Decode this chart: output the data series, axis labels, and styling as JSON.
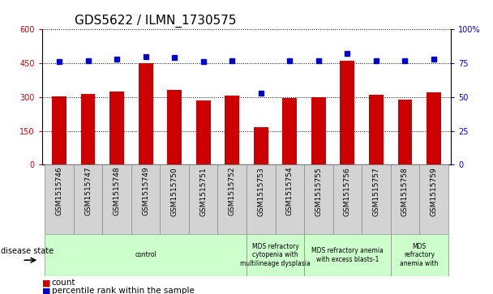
{
  "title": "GDS5622 / ILMN_1730575",
  "samples": [
    "GSM1515746",
    "GSM1515747",
    "GSM1515748",
    "GSM1515749",
    "GSM1515750",
    "GSM1515751",
    "GSM1515752",
    "GSM1515753",
    "GSM1515754",
    "GSM1515755",
    "GSM1515756",
    "GSM1515757",
    "GSM1515758",
    "GSM1515759"
  ],
  "counts": [
    302,
    315,
    325,
    450,
    330,
    285,
    305,
    165,
    295,
    298,
    460,
    310,
    290,
    322
  ],
  "percentiles": [
    76,
    77,
    78,
    80,
    79,
    76,
    77,
    53,
    77,
    77,
    82,
    77,
    77,
    78
  ],
  "left_ylim": [
    0,
    600
  ],
  "right_ylim": [
    0,
    100
  ],
  "left_yticks": [
    0,
    150,
    300,
    450,
    600
  ],
  "right_yticks": [
    0,
    25,
    50,
    75,
    100
  ],
  "right_yticklabels": [
    "0",
    "25",
    "50",
    "75",
    "100%"
  ],
  "bar_color": "#cc0000",
  "dot_color": "#0000cc",
  "disease_groups": [
    {
      "label": "control",
      "start": 0,
      "end": 6
    },
    {
      "label": "MDS refractory\ncytopenia with\nmultilineage dysplasia",
      "start": 7,
      "end": 8
    },
    {
      "label": "MDS refractory anemia\nwith excess blasts-1",
      "start": 9,
      "end": 11
    },
    {
      "label": "MDS\nrefractory\nanemia with",
      "start": 12,
      "end": 13
    }
  ],
  "disease_state_label": "disease state",
  "legend_count_label": "count",
  "legend_pct_label": "percentile rank within the sample",
  "tick_label_color_left": "#cc0000",
  "tick_label_color_right": "#0000cc",
  "title_fontsize": 11,
  "tick_fontsize": 7,
  "sample_label_fontsize": 6.5,
  "green_color": "#ccffcc",
  "gray_color": "#d3d3d3"
}
